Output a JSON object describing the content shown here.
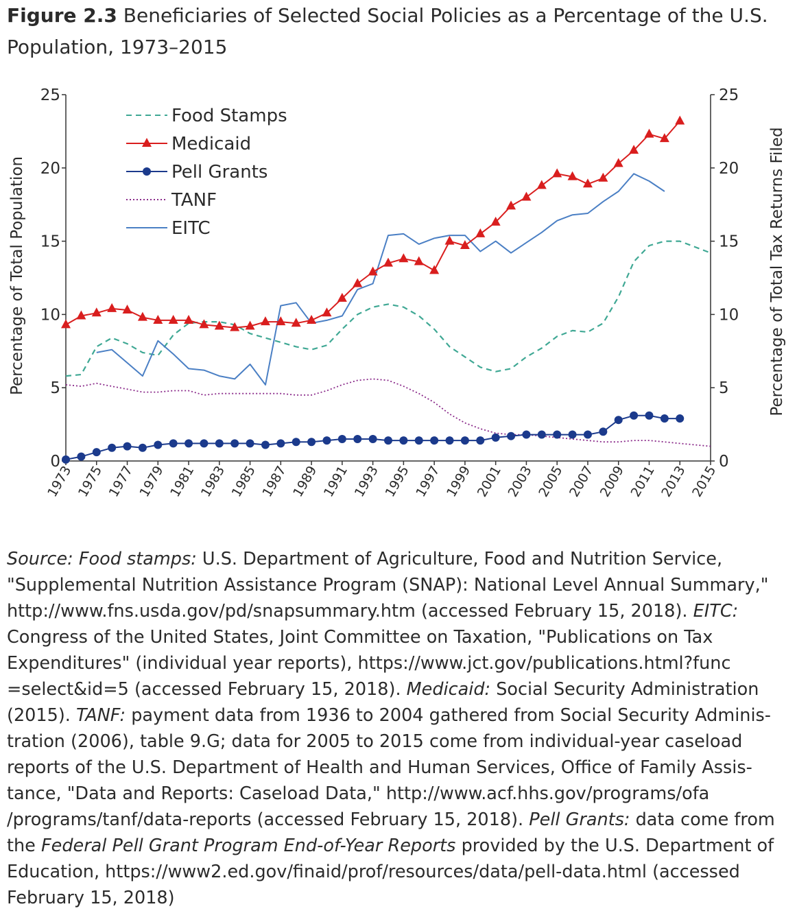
{
  "figure": {
    "number": "Figure 2.3",
    "title_line1": "Beneficiaries of Selected Social Policies as a Percentage of the U.S.",
    "title_line2": "Population, 1973–2015"
  },
  "chart_data": {
    "type": "line",
    "title": "Beneficiaries of Selected Social Policies as a Percentage of the U.S. Population, 1973–2015",
    "ylabel_left": "Percentage of Total Population",
    "ylabel_right": "Percentage of Total Tax Returns Filed",
    "ylim": [
      0,
      25
    ],
    "yticks": [
      0,
      5,
      10,
      15,
      20,
      25
    ],
    "xlim": [
      1973,
      2015
    ],
    "xticks": [
      1973,
      1975,
      1977,
      1979,
      1981,
      1983,
      1985,
      1987,
      1989,
      1991,
      1993,
      1995,
      1997,
      1999,
      2001,
      2003,
      2005,
      2007,
      2009,
      2011,
      2013,
      2015
    ],
    "legend_position": "top-left",
    "grid": false,
    "series": [
      {
        "name": "Food Stamps",
        "style": "dashed",
        "color": "#3fa894",
        "axis": "left",
        "x": [
          1973,
          1974,
          1975,
          1976,
          1977,
          1978,
          1979,
          1980,
          1981,
          1982,
          1983,
          1984,
          1985,
          1986,
          1987,
          1988,
          1989,
          1990,
          1991,
          1992,
          1993,
          1994,
          1995,
          1996,
          1997,
          1998,
          1999,
          2000,
          2001,
          2002,
          2003,
          2004,
          2005,
          2006,
          2007,
          2008,
          2009,
          2010,
          2011,
          2012,
          2013,
          2014,
          2015
        ],
        "values": [
          5.8,
          5.9,
          7.8,
          8.4,
          8.0,
          7.4,
          7.2,
          8.6,
          9.4,
          9.5,
          9.5,
          9.3,
          8.7,
          8.4,
          8.1,
          7.8,
          7.6,
          7.9,
          9.0,
          10.0,
          10.5,
          10.7,
          10.5,
          9.9,
          9.0,
          7.8,
          7.1,
          6.4,
          6.1,
          6.3,
          7.1,
          7.7,
          8.5,
          8.9,
          8.8,
          9.4,
          11.2,
          13.6,
          14.7,
          15.0,
          15.0,
          14.6,
          14.2
        ]
      },
      {
        "name": "Medicaid",
        "style": "solid-triangle",
        "color": "#d91e1e",
        "axis": "left",
        "x": [
          1973,
          1974,
          1975,
          1976,
          1977,
          1978,
          1979,
          1980,
          1981,
          1982,
          1983,
          1984,
          1985,
          1986,
          1987,
          1988,
          1989,
          1990,
          1991,
          1992,
          1993,
          1994,
          1995,
          1996,
          1997,
          1998,
          1999,
          2000,
          2001,
          2002,
          2003,
          2004,
          2005,
          2006,
          2007,
          2008,
          2009,
          2010,
          2011,
          2012,
          2013
        ],
        "values": [
          9.3,
          9.9,
          10.1,
          10.4,
          10.3,
          9.8,
          9.6,
          9.6,
          9.6,
          9.3,
          9.2,
          9.1,
          9.2,
          9.5,
          9.5,
          9.4,
          9.6,
          10.1,
          11.1,
          12.1,
          12.9,
          13.5,
          13.8,
          13.6,
          13.0,
          15.0,
          14.7,
          15.5,
          16.3,
          17.4,
          18.0,
          18.8,
          19.6,
          19.4,
          18.9,
          19.3,
          20.3,
          21.2,
          22.3,
          22.0,
          23.2
        ]
      },
      {
        "name": "Pell Grants",
        "style": "solid-circle",
        "color": "#1b3a8c",
        "axis": "left",
        "x": [
          1973,
          1974,
          1975,
          1976,
          1977,
          1978,
          1979,
          1980,
          1981,
          1982,
          1983,
          1984,
          1985,
          1986,
          1987,
          1988,
          1989,
          1990,
          1991,
          1992,
          1993,
          1994,
          1995,
          1996,
          1997,
          1998,
          1999,
          2000,
          2001,
          2002,
          2003,
          2004,
          2005,
          2006,
          2007,
          2008,
          2009,
          2010,
          2011,
          2012,
          2013
        ],
        "values": [
          0.1,
          0.3,
          0.6,
          0.9,
          1.0,
          0.9,
          1.1,
          1.2,
          1.2,
          1.2,
          1.2,
          1.2,
          1.2,
          1.1,
          1.2,
          1.3,
          1.3,
          1.4,
          1.5,
          1.5,
          1.5,
          1.4,
          1.4,
          1.4,
          1.4,
          1.4,
          1.4,
          1.4,
          1.6,
          1.7,
          1.8,
          1.8,
          1.8,
          1.8,
          1.8,
          2.0,
          2.8,
          3.1,
          3.1,
          2.9,
          2.9
        ]
      },
      {
        "name": "TANF",
        "style": "dotted",
        "color": "#8a2a8a",
        "axis": "left",
        "x": [
          1973,
          1974,
          1975,
          1976,
          1977,
          1978,
          1979,
          1980,
          1981,
          1982,
          1983,
          1984,
          1985,
          1986,
          1987,
          1988,
          1989,
          1990,
          1991,
          1992,
          1993,
          1994,
          1995,
          1996,
          1997,
          1998,
          1999,
          2000,
          2001,
          2002,
          2003,
          2004,
          2005,
          2006,
          2007,
          2008,
          2009,
          2010,
          2011,
          2012,
          2013,
          2014,
          2015
        ],
        "values": [
          5.2,
          5.1,
          5.3,
          5.1,
          4.9,
          4.7,
          4.7,
          4.8,
          4.8,
          4.5,
          4.6,
          4.6,
          4.6,
          4.6,
          4.6,
          4.5,
          4.5,
          4.8,
          5.2,
          5.5,
          5.6,
          5.5,
          5.1,
          4.6,
          4.0,
          3.2,
          2.6,
          2.2,
          1.9,
          1.8,
          1.8,
          1.7,
          1.6,
          1.5,
          1.4,
          1.3,
          1.3,
          1.4,
          1.4,
          1.3,
          1.2,
          1.1,
          1.0
        ]
      },
      {
        "name": "EITC",
        "style": "solid",
        "color": "#4a7fc4",
        "axis": "right",
        "x": [
          1975,
          1976,
          1977,
          1978,
          1979,
          1980,
          1981,
          1982,
          1983,
          1984,
          1985,
          1986,
          1987,
          1988,
          1989,
          1990,
          1991,
          1992,
          1993,
          1994,
          1995,
          1996,
          1997,
          1998,
          1999,
          2000,
          2001,
          2002,
          2003,
          2004,
          2005,
          2006,
          2007,
          2008,
          2009,
          2010,
          2011,
          2012
        ],
        "values": [
          7.4,
          7.6,
          6.7,
          5.8,
          8.2,
          7.3,
          6.3,
          6.2,
          5.8,
          5.6,
          6.6,
          5.2,
          10.6,
          10.8,
          9.4,
          9.6,
          9.9,
          11.7,
          12.1,
          15.4,
          15.5,
          14.8,
          15.2,
          15.4,
          15.4,
          14.3,
          15.0,
          14.2,
          14.9,
          15.6,
          16.4,
          16.8,
          16.9,
          17.7,
          18.4,
          19.6,
          19.1,
          18.4
        ]
      }
    ]
  },
  "source": {
    "label": "Source:",
    "fs_label": "Food stamps:",
    "fs_text": " U.S. Department of Agriculture, Food and Nutrition Service,\n\"Supplemental Nutrition Assistance Program (SNAP): National Level Annual Summary,\"\nhttp://www.fns.usda.gov/pd/snapsummary.htm (accessed February 15, 2018). ",
    "eitc_label": "EITC:",
    "eitc_text": "\nCongress of the United States, Joint Committee on Taxation, \"Publications on Tax\nExpenditures\" (individual year reports), https://www.jct.gov/publications.html?func\n=select&id=5 (accessed February 15, 2018). ",
    "medicaid_label": "Medicaid:",
    "medicaid_text": " Social Security Administration\n(2015). ",
    "tanf_label": "TANF:",
    "tanf_text": " payment data from 1936 to 2004 gathered from Social Security Adminis-\ntration (2006), table 9.G; data for 2005 to 2015 come from individual-year caseload\nreports of the U.S. Department of Health and Human Services, Office of Family Assis-\ntance, \"Data and Reports: Caseload Data,\" http://www.acf.hhs.gov/programs/ofa\n/programs/tanf/data-reports (accessed February 15, 2018). ",
    "pell_label": "Pell Grants:",
    "pell_text": " data come from\nthe ",
    "pell_report": "Federal Pell Grant Program End-of-Year Reports",
    "pell_text2": " provided by the U.S. Department of\nEducation, https://www2.ed.gov/finaid/prof/resources/data/pell-data.html (accessed\nFebruary 15, 2018)"
  }
}
